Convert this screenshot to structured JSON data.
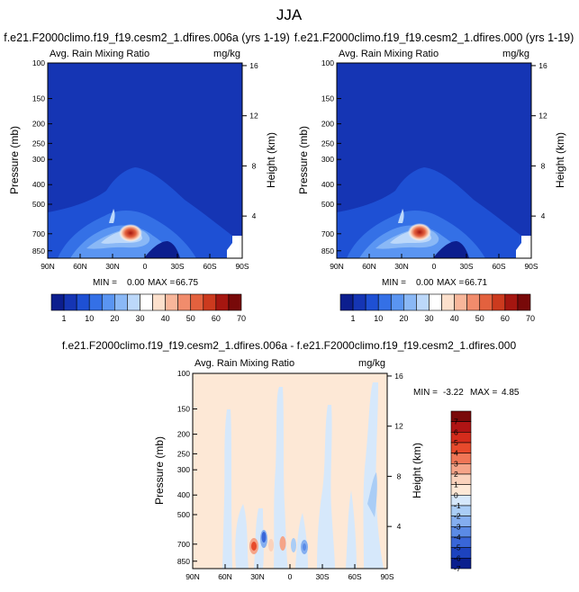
{
  "figure": {
    "title": "JJA"
  },
  "chart_data": [
    {
      "type": "heatmap",
      "id": "p1",
      "title": "f.e21.F2000climo.f19_f19.cesm2_1.dfires.006a (yrs 1-19)",
      "left_label": "Avg. Rain Mixing Ratio",
      "right_label": "mg/kg",
      "xlabel": "",
      "ylabel": "Pressure (mb)",
      "ylabel_right": "Height (km)",
      "x_ticks": [
        "90N",
        "60N",
        "30N",
        "0",
        "30S",
        "60S",
        "90S"
      ],
      "x_range": [
        90,
        -90
      ],
      "y_ticks": [
        "100",
        "150",
        "200",
        "250",
        "300",
        "400",
        "500",
        "700",
        "850"
      ],
      "y_range": [
        100,
        925
      ],
      "height_ticks": [
        "4",
        "8",
        "12",
        "16"
      ],
      "stats": {
        "min_label": "MIN =",
        "min": "0.00",
        "max_label": "MAX =",
        "max": "66.75"
      },
      "colorbar": {
        "labels": [
          "1",
          "10",
          "20",
          "30",
          "40",
          "50",
          "60",
          "70"
        ]
      }
    },
    {
      "type": "heatmap",
      "id": "p2",
      "title": "f.e21.F2000climo.f19_f19.cesm2_1.dfires.000 (yrs 1-19)",
      "left_label": "Avg. Rain Mixing Ratio",
      "right_label": "mg/kg",
      "xlabel": "",
      "ylabel": "Pressure (mb)",
      "ylabel_right": "Height (km)",
      "x_ticks": [
        "90N",
        "60N",
        "30N",
        "0",
        "30S",
        "60S",
        "90S"
      ],
      "x_range": [
        90,
        -90
      ],
      "y_ticks": [
        "100",
        "150",
        "200",
        "250",
        "300",
        "400",
        "500",
        "700",
        "850"
      ],
      "y_range": [
        100,
        925
      ],
      "height_ticks": [
        "4",
        "8",
        "12",
        "16"
      ],
      "stats": {
        "min_label": "MIN =",
        "min": "0.00",
        "max_label": "MAX =",
        "max": "66.71"
      },
      "colorbar": {
        "labels": [
          "1",
          "10",
          "20",
          "30",
          "40",
          "50",
          "60",
          "70"
        ]
      }
    },
    {
      "type": "heatmap",
      "id": "p3",
      "title": "f.e21.F2000climo.f19_f19.cesm2_1.dfires.006a - f.e21.F2000climo.f19_f19.cesm2_1.dfires.000",
      "left_label": "Avg. Rain Mixing Ratio",
      "right_label": "mg/kg",
      "xlabel": "",
      "ylabel": "Pressure (mb)",
      "ylabel_right": "Height (km)",
      "x_ticks": [
        "90N",
        "60N",
        "30N",
        "0",
        "30S",
        "60S",
        "90S"
      ],
      "x_range": [
        90,
        -90
      ],
      "y_ticks": [
        "100",
        "150",
        "200",
        "250",
        "300",
        "400",
        "500",
        "700",
        "850"
      ],
      "y_range": [
        100,
        925
      ],
      "height_ticks": [
        "4",
        "8",
        "12",
        "16"
      ],
      "stats": {
        "min_label": "MIN =",
        "min": "-3.22",
        "max_label": "MAX =",
        "max": "4.85"
      },
      "colorbar": {
        "labels": [
          "7",
          "6",
          "5",
          "4",
          "3",
          "2",
          "1",
          "0",
          "-1",
          "-2",
          "-3",
          "-4",
          "-5",
          "-6",
          "-7"
        ]
      }
    }
  ],
  "colors": {
    "seq": [
      "#0c1e8e",
      "#1535b4",
      "#1e50d4",
      "#3470e6",
      "#5a95f2",
      "#8ab8f6",
      "#bcd8fa",
      "#ffffff",
      "#fce0cc",
      "#f8b69a",
      "#f18c6c",
      "#e3613e",
      "#cc3a1e",
      "#a51610",
      "#780909"
    ],
    "div": [
      "#7a0a0a",
      "#b01414",
      "#d42c1c",
      "#e74a2c",
      "#f07656",
      "#f5a488",
      "#fad2bc",
      "#fde8d6",
      "#d6e8fb",
      "#aacdf6",
      "#84aef0",
      "#5b8be6",
      "#3966d8",
      "#1d43bf",
      "#0b1f8e"
    ]
  }
}
